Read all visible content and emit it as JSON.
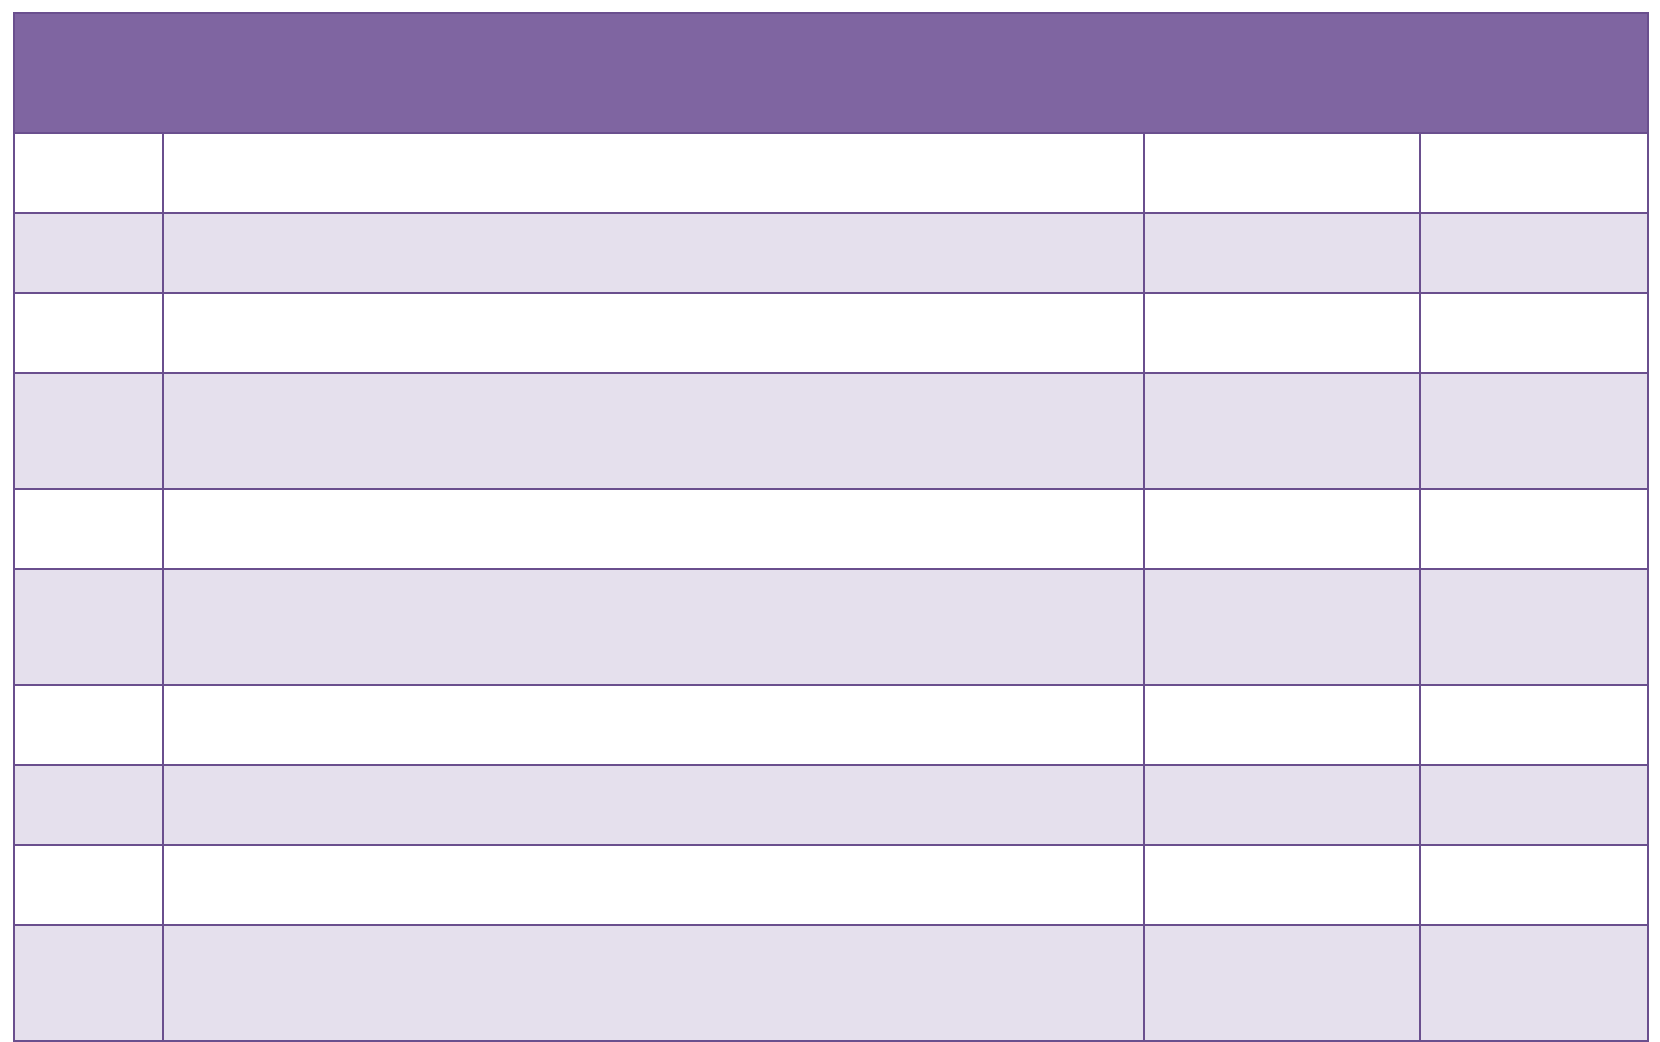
{
  "colors": {
    "header": "#7f65a1",
    "border": "#6a4f8e",
    "row_odd": "#ffffff",
    "row_even": "#e5e0ed"
  },
  "table": {
    "header": [
      ""
    ],
    "columns": 4,
    "rows": [
      [
        "",
        "",
        "",
        ""
      ],
      [
        "",
        "",
        "",
        ""
      ],
      [
        "",
        "",
        "",
        ""
      ],
      [
        "",
        "",
        "",
        ""
      ],
      [
        "",
        "",
        "",
        ""
      ],
      [
        "",
        "",
        "",
        ""
      ],
      [
        "",
        "",
        "",
        ""
      ],
      [
        "",
        "",
        "",
        ""
      ],
      [
        "",
        "",
        "",
        ""
      ],
      [
        "",
        "",
        "",
        ""
      ]
    ]
  }
}
